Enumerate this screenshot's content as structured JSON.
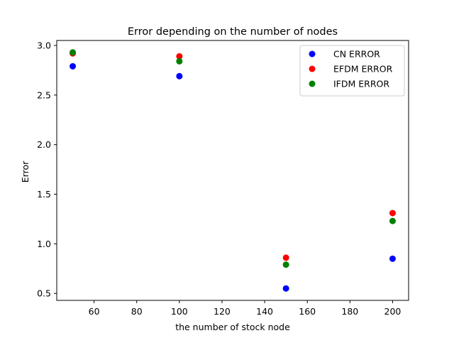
{
  "chart_data": {
    "type": "scatter",
    "title": "Error depending on the number of nodes",
    "xlabel": "the number of stock node",
    "ylabel": "Error",
    "xlim": [
      42.5,
      207.5
    ],
    "ylim": [
      0.43,
      3.05
    ],
    "xticks": [
      60,
      80,
      100,
      120,
      140,
      160,
      180,
      200
    ],
    "yticks": [
      0.5,
      1.0,
      1.5,
      2.0,
      2.5,
      3.0
    ],
    "xtick_labels": [
      "60",
      "80",
      "100",
      "120",
      "140",
      "160",
      "180",
      "200"
    ],
    "ytick_labels": [
      "0.5",
      "1.0",
      "1.5",
      "2.0",
      "2.5",
      "3.0"
    ],
    "grid": false,
    "legend_position": "top-right",
    "x": [
      50,
      100,
      150,
      200
    ],
    "series": [
      {
        "name": "CN ERROR",
        "color": "#0000ff",
        "values": [
          2.79,
          2.69,
          0.55,
          0.85
        ]
      },
      {
        "name": "EFDM ERROR",
        "color": "#ff0000",
        "values": [
          2.92,
          2.89,
          0.86,
          1.31
        ]
      },
      {
        "name": "IFDM ERROR",
        "color": "#008000",
        "values": [
          2.93,
          2.84,
          0.79,
          1.23
        ]
      }
    ]
  }
}
